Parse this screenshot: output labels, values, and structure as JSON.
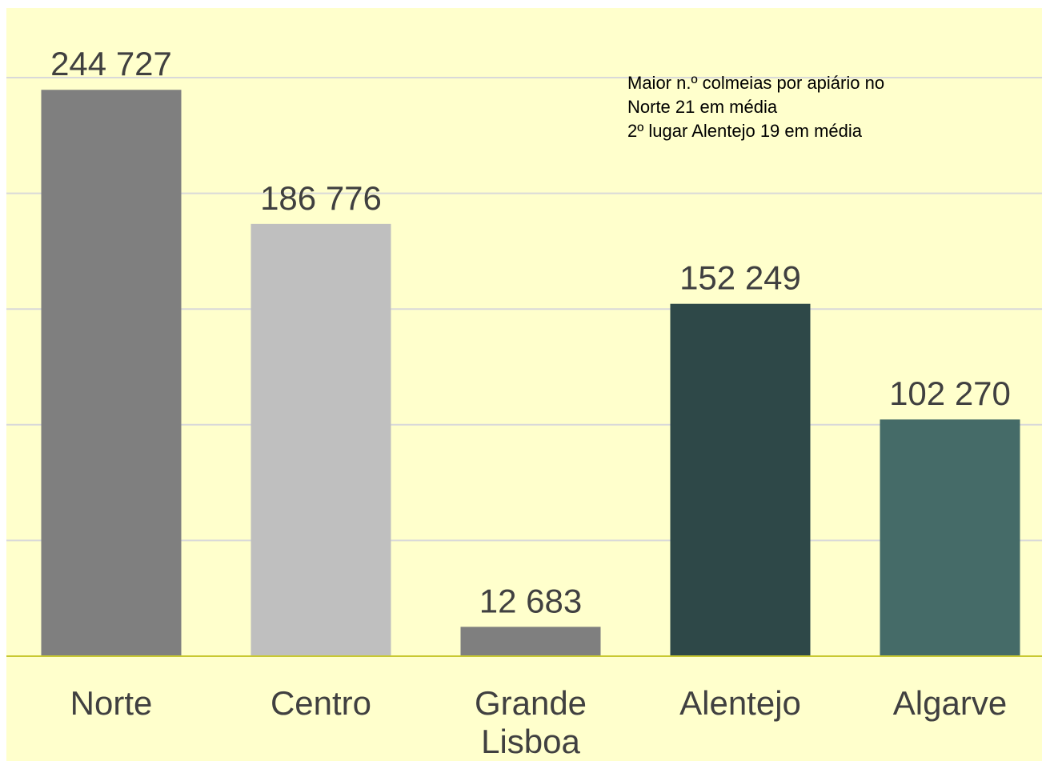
{
  "chart_data": {
    "type": "bar",
    "categories": [
      "Norte",
      "Centro",
      "Grande Lisboa",
      "Alentejo",
      "Algarve"
    ],
    "values": [
      244727,
      186776,
      12683,
      152249,
      102270
    ],
    "value_labels": [
      "244 727",
      "186 776",
      "12 683",
      "152 249",
      "102 270"
    ],
    "colors": [
      "#7f7f7f",
      "#bfbfbf",
      "#7f7f7f",
      "#2e4848",
      "#456b68"
    ],
    "ylim": [
      0,
      250000
    ],
    "yticks": [
      0,
      50000,
      100000,
      150000,
      200000,
      250000
    ],
    "grid": true,
    "annotation": [
      "Maior n.º colmeias por apiário no",
      "Norte 21 em média",
      "2º lugar Alentejo 19 em média"
    ]
  }
}
